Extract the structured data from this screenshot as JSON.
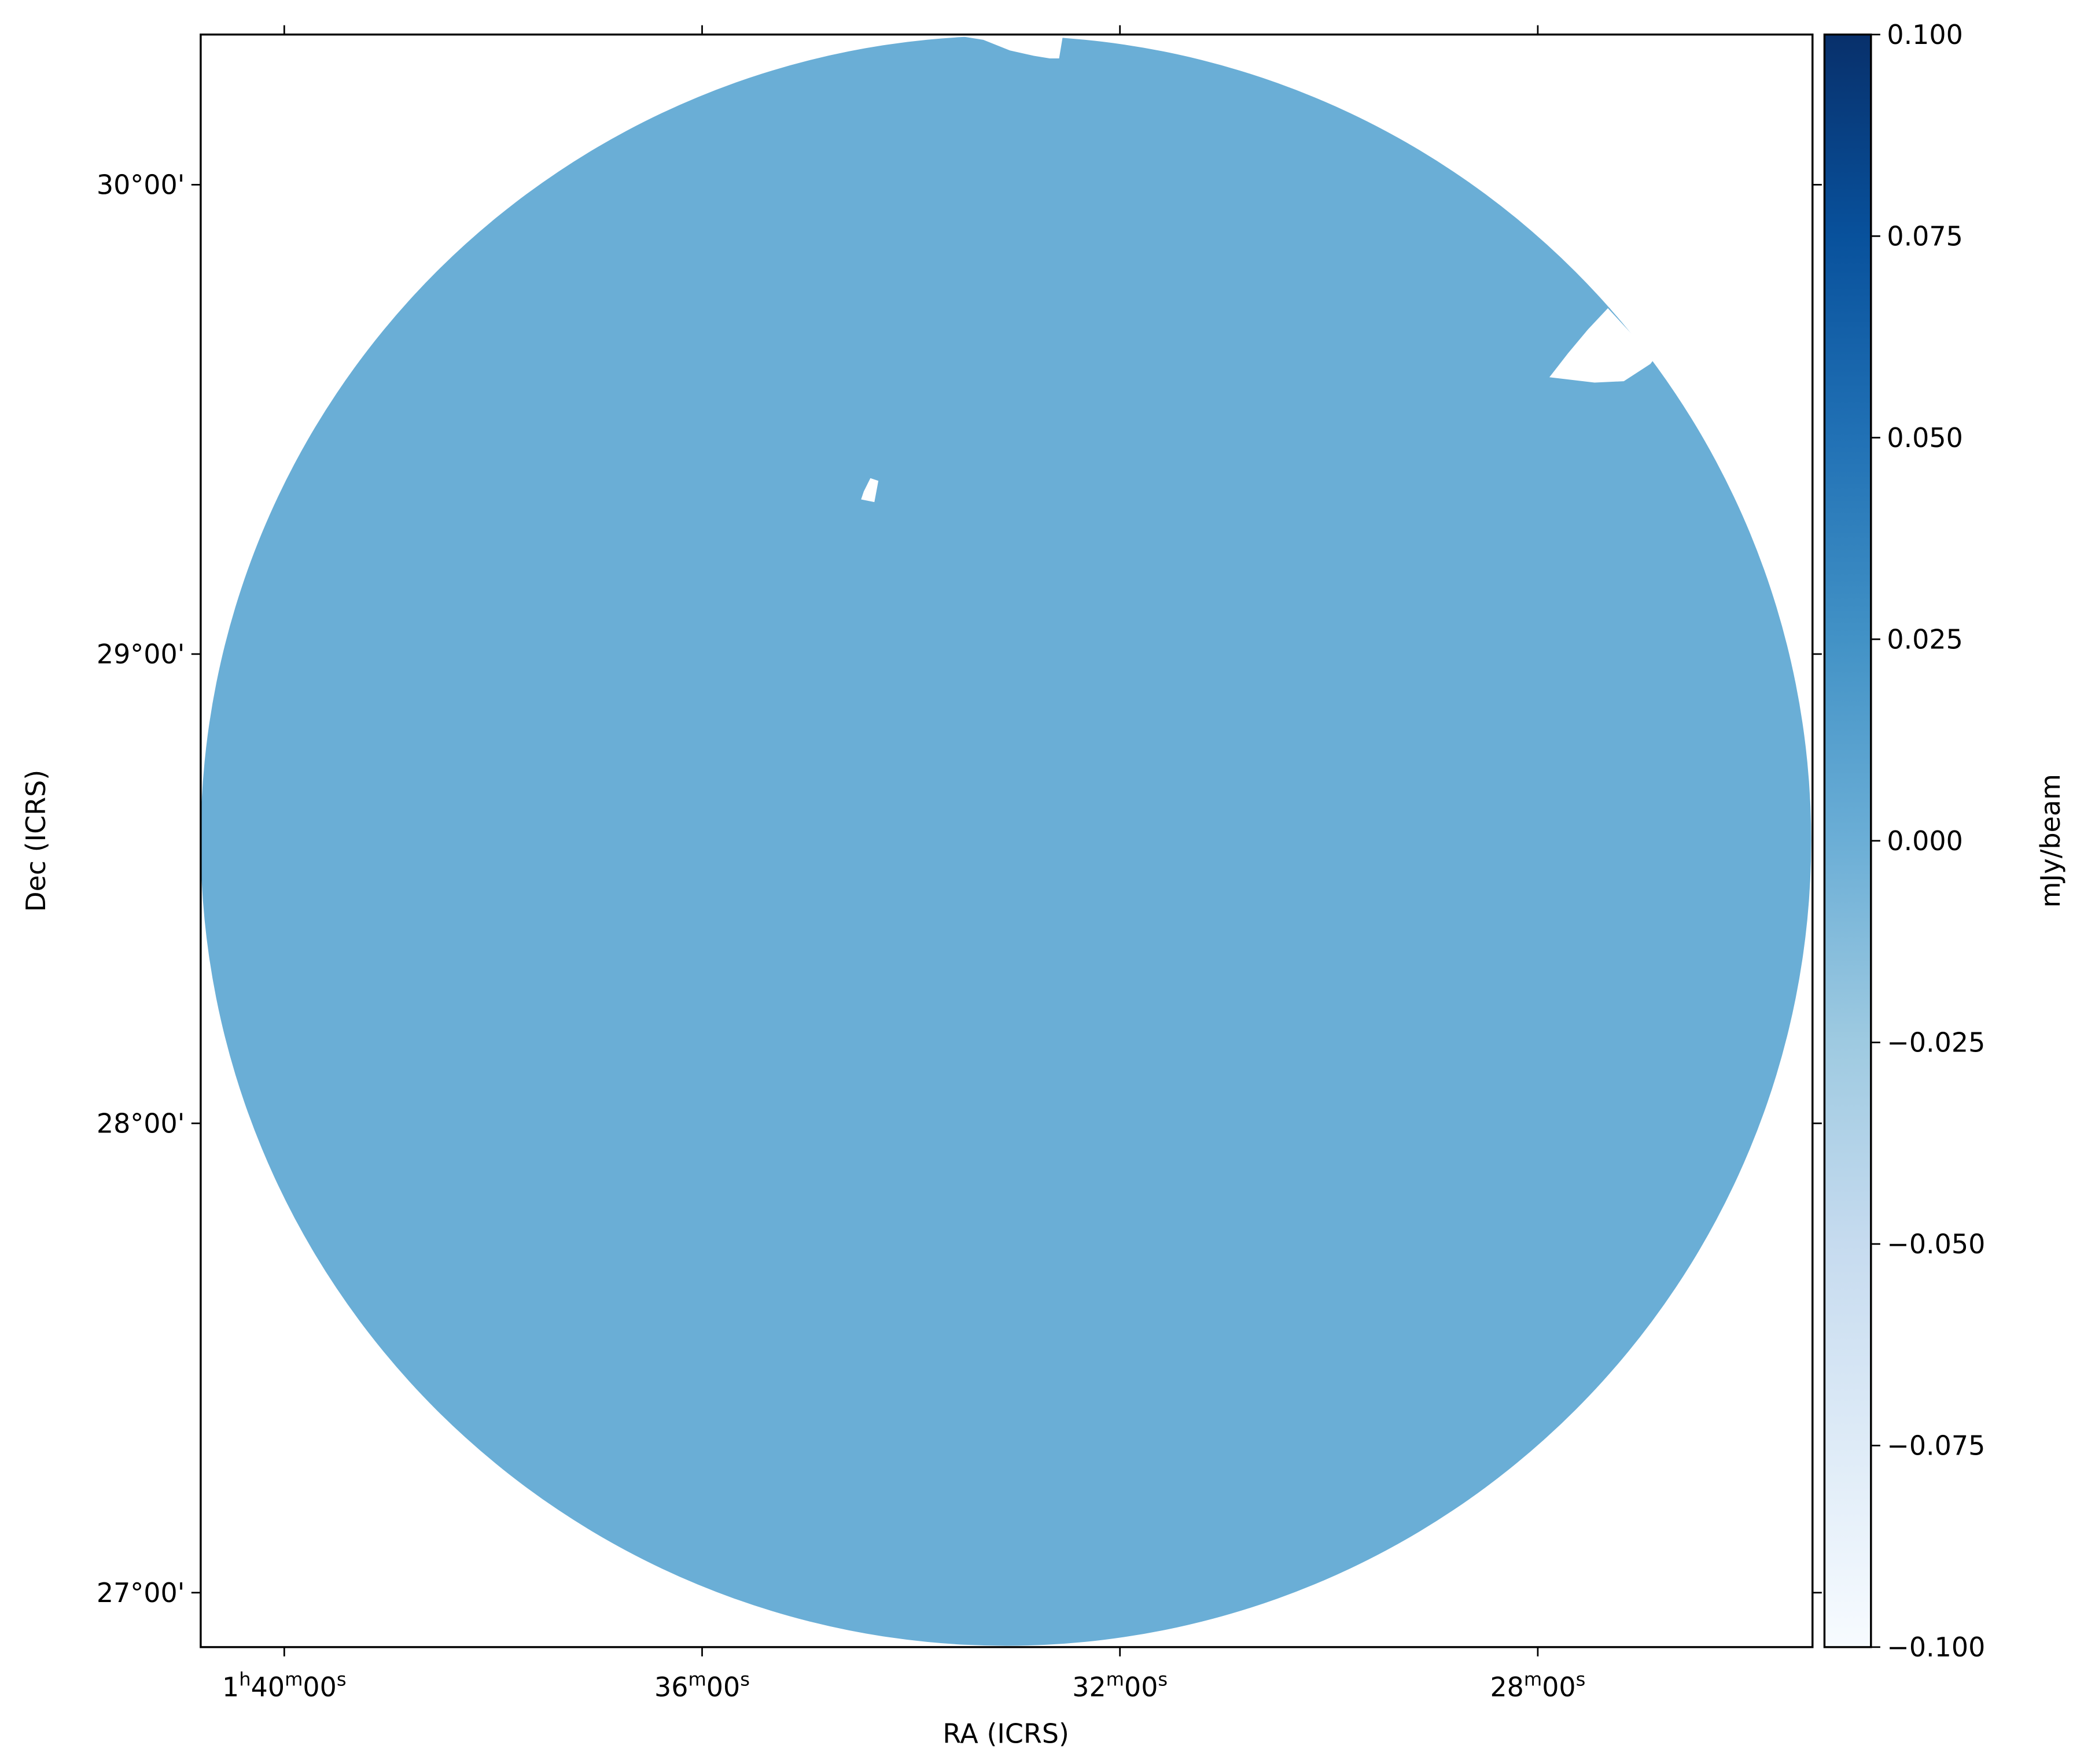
{
  "chart_data": {
    "type": "image",
    "xlabel": "RA (ICRS)",
    "ylabel": "Dec (ICRS)",
    "xlim": [
      100.8,
      85.37
    ],
    "ylim": [
      26.884,
      30.32
    ],
    "xticks": [
      {
        "value": 100,
        "label": "1h40m00s"
      },
      {
        "value": 96,
        "label": "36m00s"
      },
      {
        "value": 92,
        "label": "32m00s"
      },
      {
        "value": 88,
        "label": "28m00s"
      }
    ],
    "yticks": [
      {
        "value": 30,
        "label": "30°00'"
      },
      {
        "value": 29,
        "label": "29°00'"
      },
      {
        "value": 28,
        "label": "28°00'"
      },
      {
        "value": 27,
        "label": "27°00'"
      }
    ],
    "image_color": "#6aaed6",
    "colorbar": {
      "label": "mJy/beam",
      "clim": [
        -0.1,
        0.1
      ],
      "ticks": [
        {
          "value": 0.1,
          "label": "0.100"
        },
        {
          "value": 0.075,
          "label": "0.075"
        },
        {
          "value": 0.05,
          "label": "0.050"
        },
        {
          "value": 0.025,
          "label": "0.025"
        },
        {
          "value": 0,
          "label": "0.000"
        },
        {
          "value": -0.025,
          "label": "−0.025"
        },
        {
          "value": -0.05,
          "label": "−0.050"
        },
        {
          "value": -0.075,
          "label": "−0.075"
        },
        {
          "value": -0.1,
          "label": "−0.100"
        }
      ],
      "colors": [
        "#f7fbff",
        "#deebf7",
        "#c6dbef",
        "#9ecae1",
        "#6baed6",
        "#4292c6",
        "#2171b5",
        "#08519c",
        "#08306b"
      ]
    }
  }
}
